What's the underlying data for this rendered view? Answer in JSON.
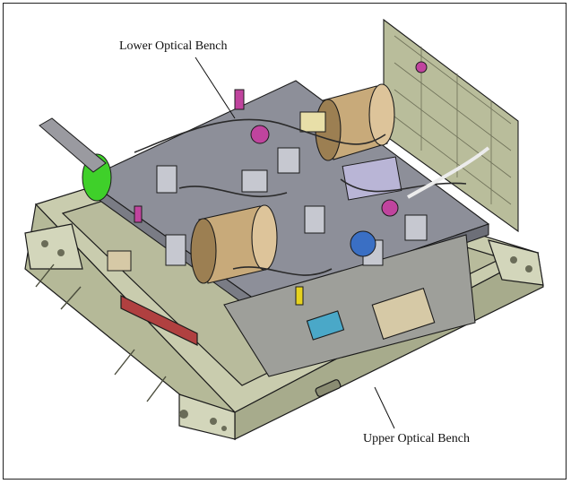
{
  "labels": {
    "lower_bench": "Lower Optical Bench",
    "upper_bench": "Upper Optical Bench"
  },
  "colors": {
    "bench_base": "#c9ccae",
    "bench_dark": "#a7ab8c",
    "bench_light": "#dfe1c8",
    "plate": "#8d8f99",
    "plate_dark": "#6d6f78",
    "cylinder": "#c8aa7a",
    "cylinder_dark": "#9c7f52",
    "accent_magenta": "#c0449e",
    "accent_green": "#3fd02a",
    "accent_blue": "#3a6fc4",
    "accent_cyan": "#4aa8c8",
    "accent_yellow": "#e6d21e",
    "accent_red": "#b04040",
    "outline": "#1b1b1b"
  }
}
